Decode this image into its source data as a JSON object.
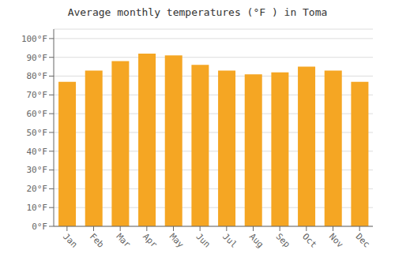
{
  "chart_data": {
    "type": "bar",
    "title": "Average monthly temperatures (°F ) in Toma",
    "categories": [
      "Jan",
      "Feb",
      "Mar",
      "Apr",
      "May",
      "Jun",
      "Jul",
      "Aug",
      "Sep",
      "Oct",
      "Nov",
      "Dec"
    ],
    "values": [
      77,
      83,
      88,
      92,
      91,
      86,
      83,
      81,
      82,
      85,
      83,
      77
    ],
    "color": "#F5A623",
    "ylim": [
      0,
      105
    ],
    "yticks": [
      {
        "value": 0,
        "label": "0°F"
      },
      {
        "value": 10,
        "label": "10°F"
      },
      {
        "value": 20,
        "label": "20°F"
      },
      {
        "value": 30,
        "label": "30°F"
      },
      {
        "value": 40,
        "label": "40°F"
      },
      {
        "value": 50,
        "label": "50°F"
      },
      {
        "value": 60,
        "label": "60°F"
      },
      {
        "value": 70,
        "label": "70°F"
      },
      {
        "value": 80,
        "label": "80°F"
      },
      {
        "value": 90,
        "label": "90°F"
      },
      {
        "value": 100,
        "label": "100°F"
      }
    ],
    "grid": true
  }
}
